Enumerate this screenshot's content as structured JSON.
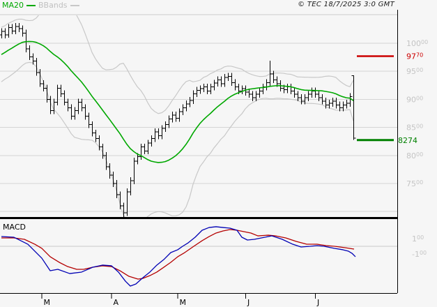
{
  "legend": {
    "ma20": "MA20",
    "bbands": "BBands"
  },
  "copyright": "© TEC 18/7/2025 3:0 GMT",
  "macd_pane_label": "MACD",
  "colors": {
    "background": "#f6f6f6",
    "grid": "#d4d4d4",
    "top_border": "#cccccc",
    "axis_text": "#c4c4c4",
    "axis_line": "#000000",
    "month_text": "#000000",
    "candle": "#000000",
    "ma20": "#00a800",
    "bbands": "#c8c8c8",
    "resistance": "#cc0000",
    "support": "#008000",
    "macd_line": "#0000b4",
    "macd_signal": "#b40000",
    "zero_line": "#c8c8c8"
  },
  "chart_data": {
    "type": "candlestick",
    "title": "",
    "panes": [
      "price with MA20 and Bollinger bands",
      "MACD"
    ],
    "price_axis": {
      "labeled_ticks": [
        10000,
        9500,
        9000,
        8500,
        8000,
        7500
      ],
      "gridlines": [
        10000,
        9500,
        9000,
        8500,
        8000,
        7500,
        7000
      ],
      "superscript_last_digits": 2,
      "visible_range": [
        6880,
        10510
      ]
    },
    "levels": {
      "resistance": {
        "value": 9770,
        "label": "9770"
      },
      "support": {
        "value": 8274,
        "label": "8274"
      }
    },
    "time_axis": {
      "month_ticks": [
        {
          "label": "M",
          "bar_index": 11.5
        },
        {
          "label": "A",
          "bar_index": 31.5
        },
        {
          "label": "M",
          "bar_index": 50.5
        },
        {
          "label": "J",
          "bar_index": 70
        },
        {
          "label": "J",
          "bar_index": 90
        }
      ]
    },
    "indicators": {
      "ma": "SMA 20",
      "bands": "Bollinger 20, 2 std"
    },
    "indicator_warmup_closes": [
      9380,
      9420,
      9460,
      9500,
      9520,
      9550,
      9600,
      9650,
      9700,
      9720,
      9750,
      9800,
      9850,
      9900,
      9950,
      10000,
      10050,
      10080,
      10120,
      10150
    ],
    "candles_ohlc": [
      [
        10150,
        10270,
        10090,
        10210
      ],
      [
        10210,
        10270,
        10090,
        10150
      ],
      [
        10150,
        10340,
        10100,
        10280
      ],
      [
        10280,
        10340,
        10160,
        10220
      ],
      [
        10220,
        10360,
        10160,
        10300
      ],
      [
        10300,
        10360,
        10200,
        10260
      ],
      [
        10260,
        10320,
        10120,
        10180
      ],
      [
        10180,
        10240,
        9840,
        9900
      ],
      [
        9900,
        9960,
        9700,
        9760
      ],
      [
        9760,
        9820,
        9620,
        9680
      ],
      [
        9680,
        9740,
        9420,
        9480
      ],
      [
        9480,
        9540,
        9220,
        9280
      ],
      [
        9280,
        9340,
        9140,
        9200
      ],
      [
        9200,
        9260,
        8940,
        9000
      ],
      [
        9000,
        9060,
        8740,
        8800
      ],
      [
        8800,
        9010,
        8740,
        8950
      ],
      [
        8950,
        9260,
        8890,
        9200
      ],
      [
        9200,
        9260,
        9040,
        9100
      ],
      [
        9100,
        9160,
        8890,
        8950
      ],
      [
        8950,
        9010,
        8790,
        8850
      ],
      [
        8850,
        8910,
        8640,
        8700
      ],
      [
        8700,
        8860,
        8640,
        8800
      ],
      [
        8800,
        9010,
        8740,
        8950
      ],
      [
        8950,
        9010,
        8790,
        8850
      ],
      [
        8850,
        8910,
        8640,
        8700
      ],
      [
        8700,
        8760,
        8490,
        8550
      ],
      [
        8550,
        8610,
        8340,
        8400
      ],
      [
        8400,
        8460,
        8240,
        8300
      ],
      [
        8300,
        8360,
        8090,
        8150
      ],
      [
        8150,
        8210,
        7940,
        8000
      ],
      [
        8000,
        8060,
        7740,
        7800
      ],
      [
        7800,
        7860,
        7590,
        7650
      ],
      [
        7650,
        7710,
        7440,
        7500
      ],
      [
        7500,
        7560,
        7240,
        7300
      ],
      [
        7300,
        7360,
        7040,
        7100
      ],
      [
        7100,
        7160,
        6900,
        6980
      ],
      [
        6980,
        7410,
        6920,
        7350
      ],
      [
        7350,
        7610,
        7290,
        7550
      ],
      [
        7550,
        7960,
        7490,
        7900
      ],
      [
        7900,
        8040,
        7840,
        7980
      ],
      [
        7980,
        8210,
        7920,
        8150
      ],
      [
        8150,
        8210,
        8020,
        8080
      ],
      [
        8080,
        8280,
        8020,
        8220
      ],
      [
        8220,
        8360,
        8160,
        8300
      ],
      [
        8300,
        8480,
        8240,
        8420
      ],
      [
        8420,
        8480,
        8290,
        8350
      ],
      [
        8350,
        8540,
        8290,
        8480
      ],
      [
        8480,
        8610,
        8420,
        8550
      ],
      [
        8550,
        8710,
        8490,
        8650
      ],
      [
        8650,
        8780,
        8590,
        8720
      ],
      [
        8720,
        8780,
        8600,
        8660
      ],
      [
        8660,
        8840,
        8600,
        8780
      ],
      [
        8780,
        8910,
        8720,
        8850
      ],
      [
        8850,
        8980,
        8790,
        8920
      ],
      [
        8920,
        9040,
        8860,
        8980
      ],
      [
        8980,
        9160,
        8920,
        9100
      ],
      [
        9100,
        9220,
        9040,
        9160
      ],
      [
        9160,
        9250,
        9100,
        9190
      ],
      [
        9190,
        9280,
        9130,
        9220
      ],
      [
        9220,
        9280,
        9090,
        9150
      ],
      [
        9150,
        9280,
        9090,
        9220
      ],
      [
        9220,
        9350,
        9160,
        9290
      ],
      [
        9290,
        9410,
        9230,
        9350
      ],
      [
        9350,
        9410,
        9220,
        9280
      ],
      [
        9280,
        9450,
        9220,
        9390
      ],
      [
        9390,
        9470,
        9330,
        9410
      ],
      [
        9410,
        9470,
        9240,
        9300
      ],
      [
        9300,
        9360,
        9160,
        9220
      ],
      [
        9220,
        9280,
        9090,
        9150
      ],
      [
        9150,
        9250,
        9090,
        9190
      ],
      [
        9190,
        9250,
        9070,
        9130
      ],
      [
        9130,
        9190,
        9030,
        9090
      ],
      [
        9090,
        9150,
        8970,
        9030
      ],
      [
        9030,
        9150,
        8970,
        9090
      ],
      [
        9090,
        9210,
        9030,
        9150
      ],
      [
        9150,
        9280,
        9090,
        9220
      ],
      [
        9220,
        9360,
        9160,
        9300
      ],
      [
        9300,
        9690,
        9240,
        9450
      ],
      [
        9450,
        9510,
        9290,
        9350
      ],
      [
        9350,
        9410,
        9220,
        9280
      ],
      [
        9280,
        9340,
        9140,
        9200
      ],
      [
        9200,
        9260,
        9110,
        9170
      ],
      [
        9170,
        9280,
        9110,
        9220
      ],
      [
        9220,
        9280,
        9090,
        9150
      ],
      [
        9150,
        9210,
        9030,
        9090
      ],
      [
        9090,
        9150,
        8970,
        9030
      ],
      [
        9030,
        9090,
        8910,
        8970
      ],
      [
        8970,
        9090,
        8910,
        9030
      ],
      [
        9030,
        9150,
        8970,
        9090
      ],
      [
        9090,
        9210,
        9030,
        9150
      ],
      [
        9150,
        9210,
        9030,
        9090
      ],
      [
        9090,
        9150,
        8970,
        9030
      ],
      [
        9030,
        9090,
        8910,
        8970
      ],
      [
        8970,
        9030,
        8840,
        8900
      ],
      [
        8900,
        8990,
        8840,
        8930
      ],
      [
        8930,
        9030,
        8870,
        8970
      ],
      [
        8970,
        9030,
        8840,
        8900
      ],
      [
        8900,
        8960,
        8790,
        8850
      ],
      [
        8850,
        8960,
        8790,
        8900
      ],
      [
        8900,
        8990,
        8840,
        8930
      ],
      [
        8930,
        9110,
        8870,
        9050
      ],
      [
        9420,
        9430,
        8280,
        8310
      ]
    ],
    "macd": {
      "labels": [
        100,
        -100
      ],
      "line": [
        [
          2,
          127
        ],
        [
          20,
          118
        ],
        [
          40,
          27
        ],
        [
          50,
          -64
        ],
        [
          60,
          -155
        ],
        [
          72,
          -318
        ],
        [
          83,
          -300
        ],
        [
          100,
          -355
        ],
        [
          117,
          -336
        ],
        [
          133,
          -273
        ],
        [
          147,
          -245
        ],
        [
          160,
          -254
        ],
        [
          170,
          -336
        ],
        [
          180,
          -455
        ],
        [
          187,
          -518
        ],
        [
          195,
          -491
        ],
        [
          205,
          -409
        ],
        [
          215,
          -336
        ],
        [
          225,
          -245
        ],
        [
          235,
          -173
        ],
        [
          245,
          -82
        ],
        [
          255,
          -45
        ],
        [
          262,
          0
        ],
        [
          270,
          45
        ],
        [
          280,
          118
        ],
        [
          290,
          209
        ],
        [
          300,
          245
        ],
        [
          310,
          255
        ],
        [
          320,
          245
        ],
        [
          330,
          236
        ],
        [
          340,
          209
        ],
        [
          347,
          118
        ],
        [
          355,
          82
        ],
        [
          365,
          91
        ],
        [
          375,
          109
        ],
        [
          390,
          136
        ],
        [
          405,
          91
        ],
        [
          420,
          27
        ],
        [
          432,
          -9
        ],
        [
          445,
          0
        ],
        [
          455,
          9
        ],
        [
          465,
          0
        ],
        [
          480,
          -27
        ],
        [
          492,
          -45
        ],
        [
          500,
          -64
        ],
        [
          505,
          -91
        ],
        [
          510,
          -136
        ]
      ],
      "signal": [
        [
          2,
          109
        ],
        [
          20,
          109
        ],
        [
          35,
          91
        ],
        [
          50,
          27
        ],
        [
          60,
          -27
        ],
        [
          72,
          -136
        ],
        [
          85,
          -209
        ],
        [
          97,
          -264
        ],
        [
          110,
          -300
        ],
        [
          120,
          -300
        ],
        [
          133,
          -273
        ],
        [
          147,
          -254
        ],
        [
          160,
          -264
        ],
        [
          172,
          -318
        ],
        [
          185,
          -391
        ],
        [
          198,
          -427
        ],
        [
          205,
          -418
        ],
        [
          215,
          -382
        ],
        [
          225,
          -336
        ],
        [
          235,
          -273
        ],
        [
          245,
          -209
        ],
        [
          255,
          -136
        ],
        [
          265,
          -82
        ],
        [
          278,
          0
        ],
        [
          290,
          73
        ],
        [
          300,
          127
        ],
        [
          310,
          173
        ],
        [
          320,
          200
        ],
        [
          330,
          218
        ],
        [
          340,
          209
        ],
        [
          350,
          191
        ],
        [
          360,
          173
        ],
        [
          370,
          136
        ],
        [
          385,
          145
        ],
        [
          395,
          136
        ],
        [
          410,
          109
        ],
        [
          425,
          64
        ],
        [
          440,
          27
        ],
        [
          455,
          27
        ],
        [
          468,
          9
        ],
        [
          480,
          0
        ],
        [
          495,
          -18
        ],
        [
          508,
          -36
        ]
      ]
    }
  }
}
